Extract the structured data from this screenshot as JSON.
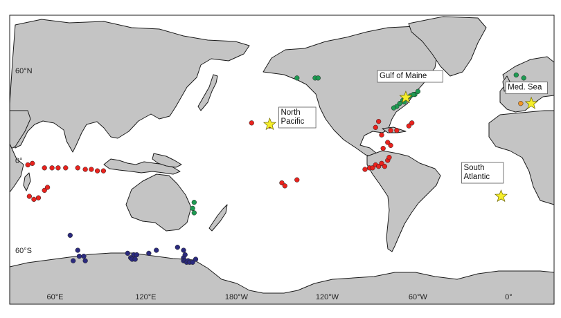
{
  "map": {
    "lat_labels": [
      {
        "text": "60°N",
        "lat": 60
      },
      {
        "text": "0°",
        "lat": 0
      },
      {
        "text": "60°S",
        "lat": -60
      }
    ],
    "lon_labels": [
      {
        "text": "60°E",
        "lon": 60
      },
      {
        "text": "120°E",
        "lon": 120
      },
      {
        "text": "180°W",
        "lon": 180
      },
      {
        "text": "120°W",
        "lon": -120
      },
      {
        "text": "60°W",
        "lon": -60
      },
      {
        "text": "0°",
        "lon": 0
      }
    ],
    "colors": {
      "red": "#e8231e",
      "green": "#1e9a52",
      "navy": "#2b2a7e",
      "orange": "#f0952a",
      "star": "#f5ee2a",
      "land": "#c4c4c4"
    },
    "sites": [
      {
        "name": "Gulf of Maine",
        "lines": [
          "Gulf of Maine"
        ],
        "lon": -68,
        "lat": 42
      },
      {
        "name": "Med. Sea",
        "lines": [
          "Med. Sea"
        ],
        "lon": 15,
        "lat": 38
      },
      {
        "name": "North Pacific",
        "lines": [
          "North",
          "Pacific"
        ],
        "lon": -158,
        "lat": 24
      },
      {
        "name": "South Atlantic",
        "lines": [
          "South",
          "Atlantic"
        ],
        "lon": -5,
        "lat": -24
      }
    ],
    "points": {
      "red": [
        [
          45,
          -2
        ],
        [
          53,
          -5
        ],
        [
          58,
          -5
        ],
        [
          62,
          -5
        ],
        [
          67,
          -5
        ],
        [
          75,
          -5
        ],
        [
          80,
          -6
        ],
        [
          84,
          -6
        ],
        [
          88,
          -7
        ],
        [
          92,
          -7
        ],
        [
          43,
          -24
        ],
        [
          46,
          -26
        ],
        [
          49,
          -25
        ],
        [
          53,
          -20
        ],
        [
          55,
          -18
        ],
        [
          42,
          -3
        ],
        [
          -150,
          -15
        ],
        [
          -148,
          -17
        ],
        [
          -140,
          -13
        ],
        [
          -158,
          23
        ],
        [
          -170,
          25
        ],
        [
          -95,
          -6
        ],
        [
          -92,
          -5
        ],
        [
          -90,
          -5
        ],
        [
          -88,
          -3
        ],
        [
          -86,
          -4
        ],
        [
          -84,
          -2
        ],
        [
          -82,
          -4
        ],
        [
          -80,
          0
        ],
        [
          -79,
          2
        ],
        [
          -83,
          8
        ],
        [
          -78,
          10
        ],
        [
          -80,
          12
        ],
        [
          -84,
          17
        ],
        [
          -88,
          22
        ],
        [
          -86,
          26
        ],
        [
          -78,
          20
        ],
        [
          -74,
          20
        ],
        [
          -66,
          23
        ],
        [
          -64,
          25
        ]
      ],
      "green": [
        [
          -70,
          40
        ],
        [
          -67,
          42
        ],
        [
          -65,
          43
        ],
        [
          -62,
          44
        ],
        [
          -60,
          46
        ],
        [
          -63,
          44
        ],
        [
          -69,
          39
        ],
        [
          -72,
          38
        ],
        [
          -74,
          36
        ],
        [
          -76,
          35
        ],
        [
          -140,
          55
        ],
        [
          -128,
          55
        ],
        [
          -126,
          55
        ],
        [
          5,
          57
        ],
        [
          10,
          55
        ],
        [
          152,
          -28
        ],
        [
          151,
          -32
        ],
        [
          152,
          -35
        ]
      ],
      "navy": [
        [
          70,
          -50
        ],
        [
          75,
          -60
        ],
        [
          76,
          -64
        ],
        [
          79,
          -64
        ],
        [
          72,
          -67
        ],
        [
          80,
          -67
        ],
        [
          108,
          -62
        ],
        [
          112,
          -63
        ],
        [
          114,
          -63
        ],
        [
          110,
          -65
        ],
        [
          111,
          -66
        ],
        [
          113,
          -66
        ],
        [
          122,
          -62
        ],
        [
          127,
          -60
        ],
        [
          141,
          -58
        ],
        [
          145,
          -60
        ],
        [
          145,
          -65
        ],
        [
          145,
          -67
        ],
        [
          146,
          -67
        ],
        [
          147,
          -68
        ],
        [
          148,
          -67
        ],
        [
          149,
          -68
        ],
        [
          151,
          -68
        ],
        [
          153,
          -66
        ],
        [
          146,
          -63
        ]
      ],
      "orange": [
        [
          8,
          38
        ]
      ]
    }
  }
}
